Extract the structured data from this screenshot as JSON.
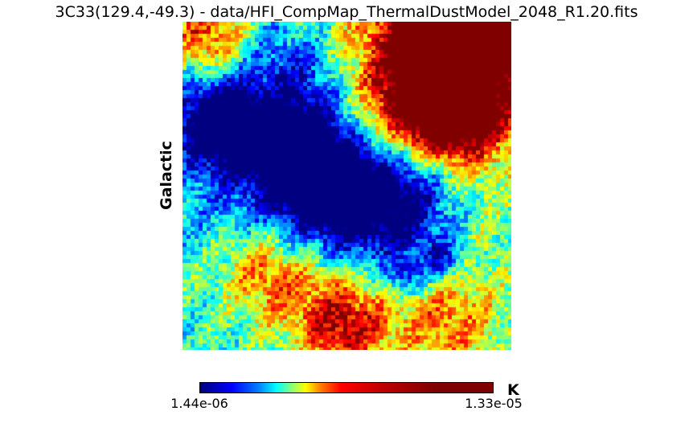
{
  "title": "3C33(129.4,-49.3) - data/HFI_CompMap_ThermalDustModel_2048_R1.20.fits",
  "frame_label": "Galactic",
  "colorbar": {
    "min_label": "1.44e-06",
    "max_label": "1.33e-05",
    "unit": "K",
    "colormap": "jet"
  }
}
